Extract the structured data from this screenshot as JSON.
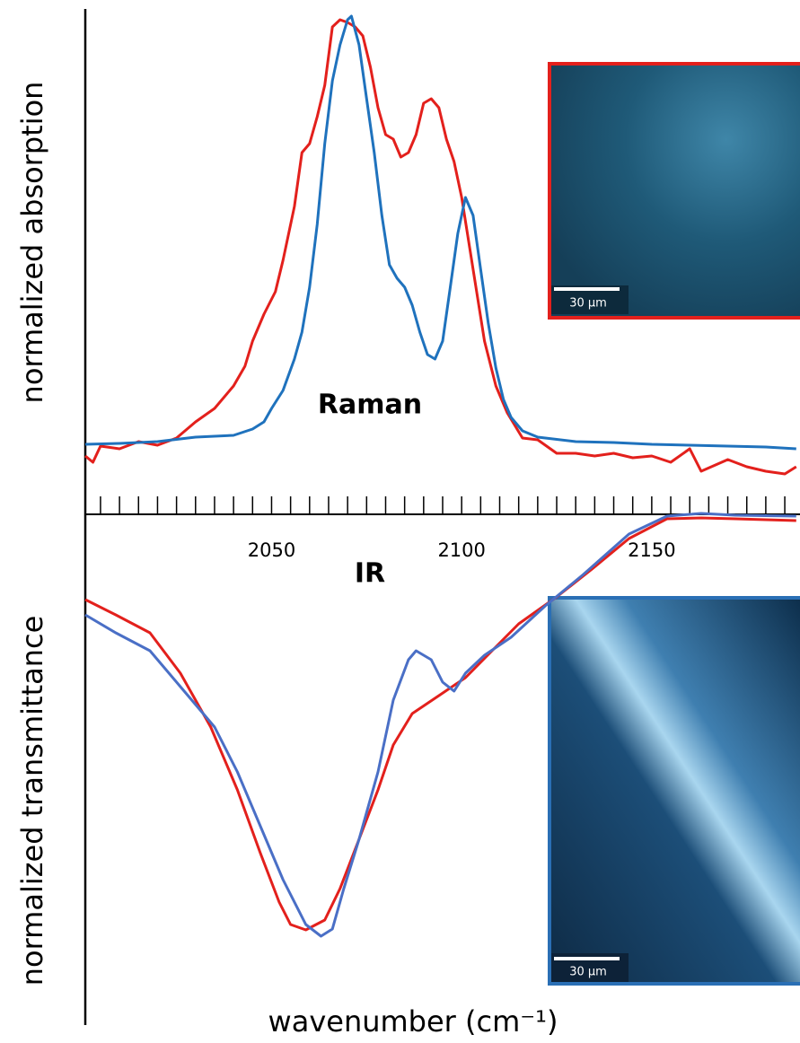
{
  "chart_data": [
    {
      "type": "line",
      "ylabel": "normalized absorption",
      "annotation": "Raman",
      "xlim": [
        2001,
        2189
      ],
      "xticks": [
        2050,
        2100,
        2150
      ],
      "minor_xticks": [
        2005,
        2010,
        2015,
        2020,
        2025,
        2030,
        2035,
        2040,
        2045,
        2050,
        2055,
        2060,
        2065,
        2070,
        2075,
        2080,
        2085,
        2090,
        2095,
        2100,
        2105,
        2110,
        2115,
        2120,
        2125,
        2130,
        2135,
        2140,
        2145,
        2150,
        2155,
        2160,
        2165,
        2170,
        2175,
        2180,
        2185
      ],
      "ylim": [
        0,
        563
      ],
      "inset": {
        "scale_label": "30 µm",
        "border_color": "#e3201c"
      },
      "series": [
        {
          "color": "#e3201c",
          "x": [
            2001,
            2003,
            2005,
            2010,
            2015,
            2020,
            2025,
            2030,
            2035,
            2040,
            2043,
            2045,
            2048,
            2051,
            2053,
            2056,
            2058,
            2060,
            2062,
            2064,
            2066,
            2068,
            2070,
            2072,
            2074,
            2076,
            2078,
            2080,
            2082,
            2084,
            2086,
            2088,
            2090,
            2092,
            2094,
            2096,
            2098,
            2100,
            2103,
            2106,
            2109,
            2112,
            2116,
            2120,
            2125,
            2130,
            2135,
            2140,
            2145,
            2150,
            2155,
            2160,
            2163,
            2170,
            2175,
            2180,
            2185,
            2188
          ],
          "values": [
            65,
            58,
            76,
            73,
            81,
            77,
            85,
            103,
            118,
            143,
            165,
            193,
            223,
            248,
            283,
            343,
            403,
            413,
            443,
            478,
            543,
            551,
            548,
            543,
            533,
            498,
            453,
            423,
            418,
            398,
            403,
            423,
            458,
            463,
            453,
            418,
            393,
            353,
            273,
            193,
            143,
            113,
            85,
            83,
            68,
            68,
            65,
            68,
            63,
            65,
            58,
            73,
            48,
            61,
            53,
            48,
            45,
            53
          ]
        },
        {
          "color": "#1f72bd",
          "x": [
            2001,
            2010,
            2020,
            2030,
            2040,
            2045,
            2048,
            2050,
            2053,
            2056,
            2058,
            2060,
            2062,
            2064,
            2066,
            2068,
            2070,
            2071,
            2073,
            2075,
            2077,
            2079,
            2081,
            2083,
            2085,
            2087,
            2089,
            2091,
            2093,
            2095,
            2097,
            2099,
            2101,
            2103,
            2105,
            2107,
            2109,
            2111,
            2113,
            2116,
            2120,
            2130,
            2140,
            2150,
            2160,
            2170,
            2180,
            2188
          ],
          "values": [
            78,
            79,
            81,
            86,
            88,
            95,
            103,
            118,
            138,
            173,
            203,
            253,
            323,
            413,
            483,
            523,
            551,
            555,
            523,
            463,
            403,
            333,
            278,
            263,
            253,
            233,
            203,
            178,
            173,
            193,
            253,
            313,
            353,
            333,
            273,
            213,
            163,
            128,
            108,
            93,
            86,
            81,
            80,
            78,
            77,
            76,
            75,
            73
          ]
        }
      ]
    },
    {
      "type": "line",
      "ylabel": "normalized transmittance",
      "annotation": "IR",
      "xlabel": "wavenumber (cm⁻¹)",
      "xlim": [
        2001,
        2189
      ],
      "ylim": [
        0,
        570
      ],
      "inset": {
        "scale_label": "30 µm",
        "border_color": "#2a6fb5"
      },
      "series": [
        {
          "color": "#e3201c",
          "x": [
            2001,
            2009,
            2018,
            2026,
            2034,
            2041,
            2047,
            2052,
            2055,
            2059,
            2064,
            2068,
            2073,
            2078,
            2082,
            2087,
            2094,
            2101,
            2108,
            2115,
            2125,
            2134,
            2144,
            2154,
            2163,
            2172,
            2188
          ],
          "values": [
            472,
            455,
            435,
            390,
            330,
            260,
            190,
            135,
            110,
            104,
            115,
            150,
            205,
            260,
            310,
            345,
            365,
            385,
            415,
            445,
            475,
            505,
            540,
            562,
            563,
            562,
            560
          ]
        },
        {
          "color": "#4a6fc6",
          "x": [
            2001,
            2009,
            2018,
            2026,
            2035,
            2041,
            2047,
            2053,
            2059,
            2063,
            2066,
            2069,
            2073,
            2078,
            2082,
            2086,
            2088,
            2092,
            2095,
            2098,
            2101,
            2106,
            2113,
            2122,
            2132,
            2144,
            2154,
            2163,
            2172,
            2188
          ],
          "values": [
            455,
            435,
            415,
            375,
            330,
            280,
            220,
            160,
            110,
            97,
            105,
            150,
            205,
            280,
            360,
            405,
            415,
            405,
            380,
            370,
            390,
            410,
            430,
            465,
            500,
            545,
            565,
            568,
            566,
            565
          ]
        }
      ]
    }
  ]
}
